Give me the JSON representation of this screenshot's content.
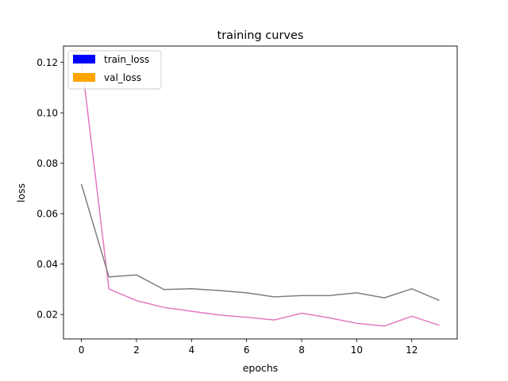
{
  "chart_data": {
    "type": "line",
    "title": "training curves",
    "xlabel": "epochs",
    "ylabel": "loss",
    "xlim": [
      -0.65,
      13.65
    ],
    "ylim": [
      0.0103,
      0.1265
    ],
    "xticks": [
      0,
      2,
      4,
      6,
      8,
      10,
      12
    ],
    "yticks": [
      0.02,
      0.04,
      0.06,
      0.08,
      0.1,
      0.12
    ],
    "ytick_labels": [
      "0.02",
      "0.04",
      "0.06",
      "0.08",
      "0.10",
      "0.12"
    ],
    "grid": false,
    "legend_position": "top-left",
    "legend": [
      {
        "label": "train_loss",
        "color": "#0000ff"
      },
      {
        "label": "val_loss",
        "color": "#ffa500"
      }
    ],
    "series": [
      {
        "color": "#e377c2",
        "x": [
          0,
          1,
          2,
          3,
          4,
          5,
          6,
          7,
          8,
          9,
          10,
          11,
          12,
          13
        ],
        "values": [
          0.1212,
          0.0301,
          0.0255,
          0.0228,
          0.0213,
          0.0198,
          0.0189,
          0.0178,
          0.0205,
          0.0187,
          0.0165,
          0.0154,
          0.0193,
          0.0157
        ]
      },
      {
        "color": "#7f7f7f",
        "x": [
          0,
          1,
          2,
          3,
          4,
          5,
          6,
          7,
          8,
          9,
          10,
          11,
          12,
          13
        ],
        "values": [
          0.0717,
          0.0349,
          0.0357,
          0.0299,
          0.0302,
          0.0295,
          0.0286,
          0.027,
          0.0275,
          0.0275,
          0.0286,
          0.0266,
          0.0302,
          0.0256
        ]
      }
    ]
  }
}
